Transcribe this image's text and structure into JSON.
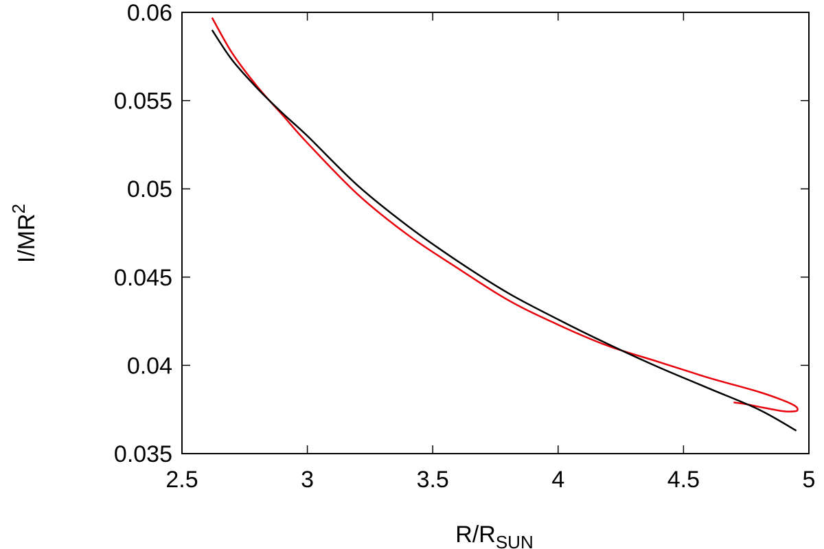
{
  "chart_data": {
    "type": "line",
    "xlabel": "R/R",
    "xlabel_sub": "SUN",
    "ylabel": "I/MR",
    "ylabel_sup": "2",
    "xlim": [
      2.5,
      5
    ],
    "ylim": [
      0.035,
      0.06
    ],
    "xticks": [
      2.5,
      3,
      3.5,
      4,
      4.5,
      5
    ],
    "xtick_labels": [
      "2.5",
      "3",
      "3.5",
      "4",
      "4.5",
      "5"
    ],
    "yticks": [
      0.035,
      0.04,
      0.045,
      0.05,
      0.055,
      0.06
    ],
    "ytick_labels": [
      "0.035",
      "0.04",
      "0.045",
      "0.05",
      "0.055",
      "0.06"
    ],
    "grid": false,
    "legend": "none",
    "series": [
      {
        "color": "#e8000b",
        "points": [
          [
            2.62,
            0.0597
          ],
          [
            2.7,
            0.0577
          ],
          [
            2.8,
            0.0558
          ],
          [
            2.9,
            0.0542
          ],
          [
            3.0,
            0.0526
          ],
          [
            3.2,
            0.0497
          ],
          [
            3.4,
            0.0474
          ],
          [
            3.6,
            0.0455
          ],
          [
            3.8,
            0.0437
          ],
          [
            4.0,
            0.0423
          ],
          [
            4.2,
            0.0411
          ],
          [
            4.4,
            0.0402
          ],
          [
            4.6,
            0.0393
          ],
          [
            4.8,
            0.0385
          ],
          [
            4.9,
            0.038
          ],
          [
            4.945,
            0.0377
          ],
          [
            4.955,
            0.0375
          ],
          [
            4.945,
            0.0374
          ],
          [
            4.9,
            0.0374
          ],
          [
            4.82,
            0.0376
          ],
          [
            4.75,
            0.0378
          ],
          [
            4.7,
            0.0379
          ]
        ]
      },
      {
        "color": "#000000",
        "points": [
          [
            2.62,
            0.059
          ],
          [
            2.7,
            0.0573
          ],
          [
            2.8,
            0.0557
          ],
          [
            2.9,
            0.0543
          ],
          [
            3.0,
            0.053
          ],
          [
            3.2,
            0.0502
          ],
          [
            3.4,
            0.0479
          ],
          [
            3.6,
            0.0459
          ],
          [
            3.8,
            0.0441
          ],
          [
            4.0,
            0.0426
          ],
          [
            4.2,
            0.0412
          ],
          [
            4.4,
            0.0399
          ],
          [
            4.6,
            0.0387
          ],
          [
            4.8,
            0.0375
          ],
          [
            4.95,
            0.0363
          ]
        ]
      }
    ]
  }
}
